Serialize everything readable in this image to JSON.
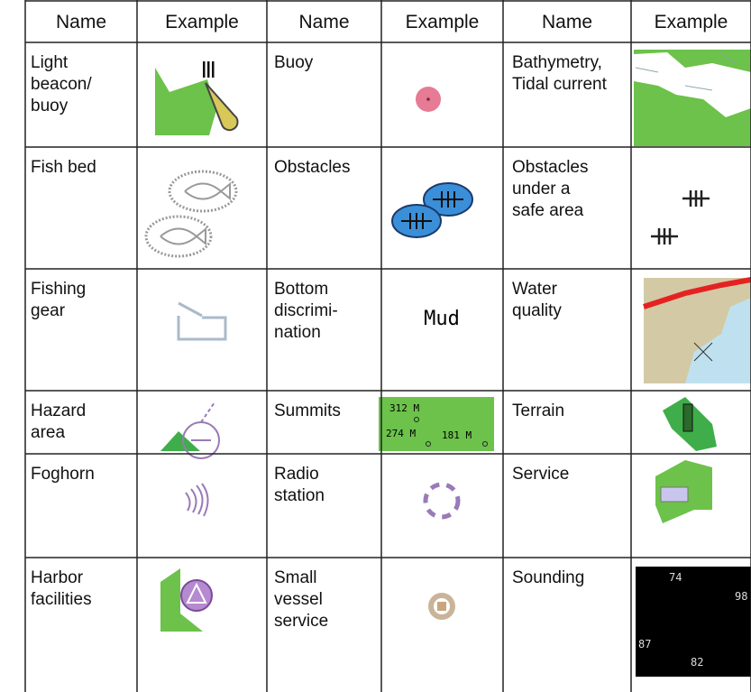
{
  "table": {
    "header": [
      "Name",
      "Example",
      "Name",
      "Example",
      "Name",
      "Example"
    ],
    "rows": [
      [
        {
          "name": [
            "Light",
            "beacon/",
            "buoy"
          ]
        },
        {
          "name": [
            "Buoy"
          ]
        },
        {
          "name": [
            "Bathymetry,",
            "Tidal current"
          ]
        }
      ],
      [
        {
          "name": [
            "Fish bed"
          ]
        },
        {
          "name": [
            "Obstacles"
          ]
        },
        {
          "name": [
            "Obstacles",
            "under a",
            "safe area"
          ]
        }
      ],
      [
        {
          "name": [
            "Fishing",
            "gear"
          ]
        },
        {
          "name": [
            "Bottom",
            "discrimi-",
            "nation"
          ],
          "example_text": [
            "Mud"
          ]
        },
        {
          "name": [
            "Water",
            "quality"
          ]
        }
      ],
      [
        {
          "name": [
            "Hazard",
            "area"
          ]
        },
        {
          "name": [
            "Summits"
          ],
          "example_text": [
            "312 M",
            "274 M",
            "181 M"
          ]
        },
        {
          "name": [
            "Terrain"
          ]
        }
      ],
      [
        {
          "name": [
            "Foghorn"
          ]
        },
        {
          "name": [
            "Radio",
            "station"
          ]
        },
        {
          "name": [
            "Service"
          ]
        }
      ],
      [
        {
          "name": [
            "Harbor",
            "facilities"
          ]
        },
        {
          "name": [
            "Small",
            "vessel",
            "service"
          ]
        },
        {
          "name": [
            "Sounding"
          ],
          "example_text": [
            "74",
            "98",
            "87",
            "82"
          ]
        }
      ]
    ]
  }
}
